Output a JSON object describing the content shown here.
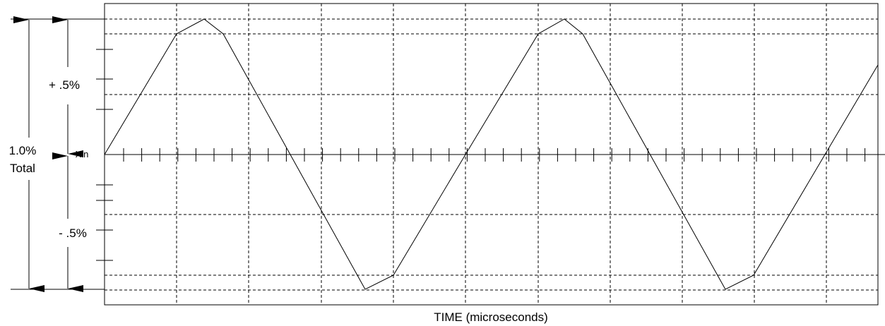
{
  "labels": {
    "plus": "+ .5%",
    "total_pct": "1.0%",
    "total": "Total",
    "xin": "Xin",
    "minus": "- .5%"
  },
  "x_axis_label": "TIME (microseconds)"
}
